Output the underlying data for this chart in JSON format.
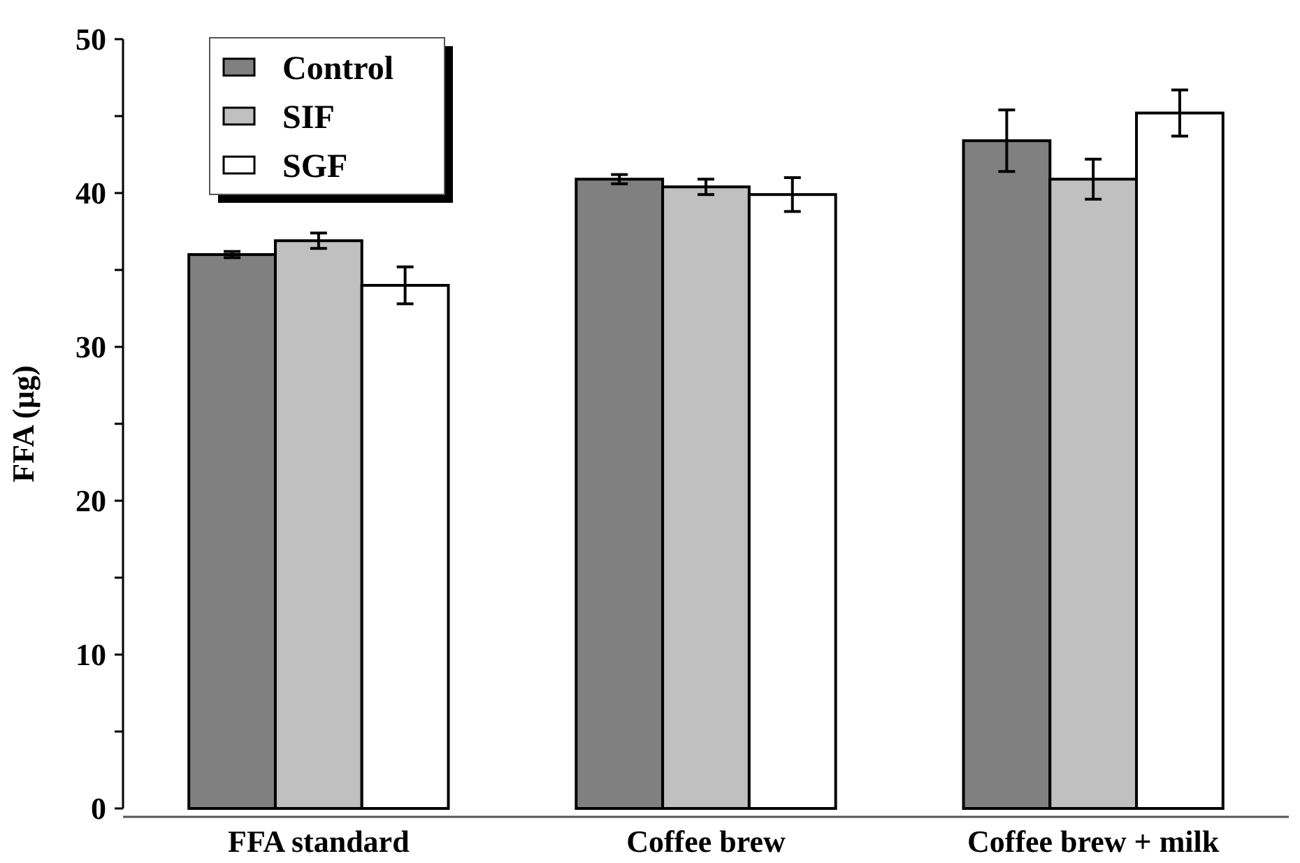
{
  "chart_data": {
    "type": "bar",
    "ylabel": "FFA (µg)",
    "categories": [
      "FFA standard",
      "Coffee brew",
      "Coffee brew + milk"
    ],
    "series": [
      {
        "name": "Control",
        "color": "#808080",
        "values": [
          36.0,
          40.9,
          43.4
        ],
        "errors": [
          0.2,
          0.3,
          2.0
        ]
      },
      {
        "name": "SIF",
        "color": "#c0c0c0",
        "values": [
          36.9,
          40.4,
          40.9
        ],
        "errors": [
          0.5,
          0.5,
          1.3
        ]
      },
      {
        "name": "SGF",
        "color": "#ffffff",
        "values": [
          34.0,
          39.9,
          45.2
        ],
        "errors": [
          1.2,
          1.1,
          1.5
        ]
      }
    ],
    "ylim": [
      0,
      50
    ],
    "yticks": [
      0,
      {
        "value": 5,
        "label": null
      },
      10,
      {
        "value": 15,
        "label": null
      },
      20,
      {
        "value": 25,
        "label": null
      },
      30,
      {
        "value": 35,
        "label": null
      },
      40,
      {
        "value": 45,
        "label": null
      },
      50
    ],
    "grid": false,
    "legend": "top left"
  }
}
